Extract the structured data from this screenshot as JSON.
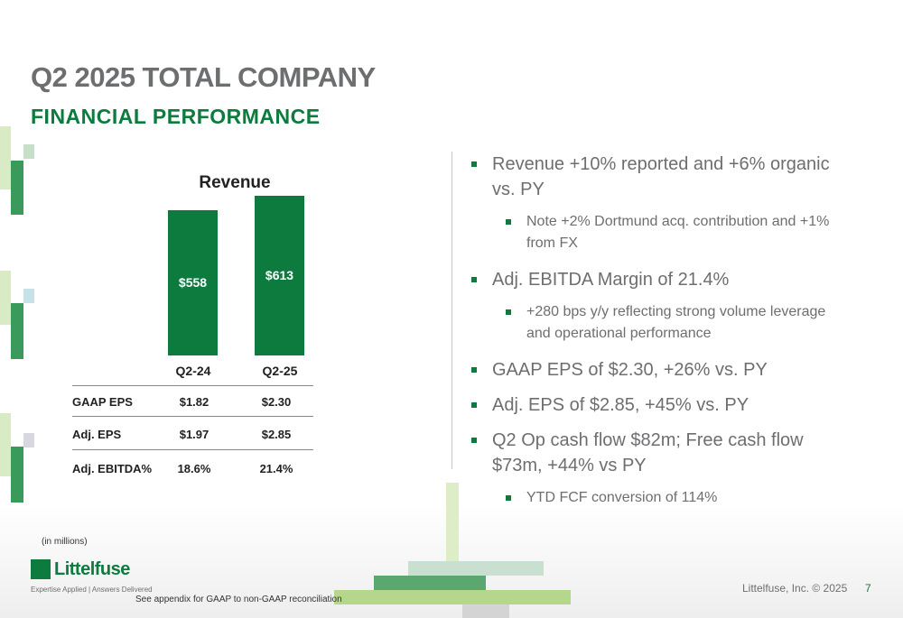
{
  "header": {
    "title": "Q2 2025 TOTAL COMPANY",
    "subtitle": "FINANCIAL PERFORMANCE"
  },
  "chart_data": {
    "type": "bar",
    "title": "Revenue",
    "categories": [
      "Q2-24",
      "Q2-25"
    ],
    "values": [
      558,
      613
    ],
    "data_labels": [
      "$558",
      "$613"
    ],
    "units_note": "(in millions)",
    "bar_color": "#0d7a3e",
    "grid": false,
    "legend": "none"
  },
  "table": {
    "rows": [
      {
        "label": "GAAP EPS",
        "q2_24": "$1.82",
        "q2_25": "$2.30"
      },
      {
        "label": "Adj. EPS",
        "q2_24": "$1.97",
        "q2_25": "$2.85"
      },
      {
        "label": "Adj. EBITDA%",
        "q2_24": "18.6%",
        "q2_25": "21.4%"
      }
    ]
  },
  "bullets": [
    {
      "text": "Revenue +10% reported and +6% organic vs. PY",
      "sub": [
        "Note +2% Dortmund acq. contribution and +1% from FX"
      ]
    },
    {
      "text": "Adj. EBITDA Margin of 21.4%",
      "sub": [
        "+280 bps y/y reflecting strong volume leverage and operational performance"
      ]
    },
    {
      "text": "GAAP EPS of $2.30, +26% vs. PY",
      "sub": []
    },
    {
      "text": "Adj. EPS of $2.85, +45% vs. PY",
      "sub": []
    },
    {
      "text": "Q2 Op cash flow $82m; Free cash flow $73m, +44% vs PY",
      "sub": [
        "YTD FCF conversion of 114%"
      ]
    }
  ],
  "footer": {
    "appendix_note": "See appendix for GAAP to non-GAAP reconciliation",
    "copyright": "Littelfuse, Inc. © 2025",
    "page_number": "7",
    "logo_text": "Littelfuse",
    "tagline": "Expertise Applied | Answers Delivered"
  },
  "colors": {
    "brand_green": "#0d7a3e",
    "title_gray": "#6d6e70"
  }
}
